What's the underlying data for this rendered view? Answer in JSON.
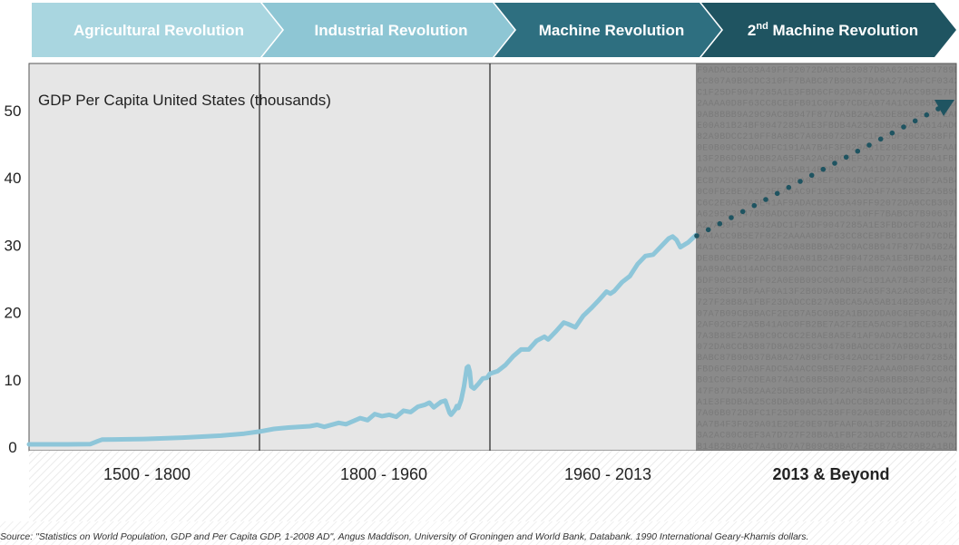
{
  "revolutions": [
    {
      "label": "Agricultural Revolution",
      "color": "#a9d6e0",
      "text_color": "#ffffff"
    },
    {
      "label": "Industrial Revolution",
      "color": "#8ec6d4",
      "text_color": "#ffffff"
    },
    {
      "label": "Machine Revolution",
      "color": "#2e6f80",
      "text_color": "#ffffff"
    },
    {
      "label": "2nd Machine Revolution",
      "label_sup": "nd",
      "label_prefix": "2",
      "label_suffix": " Machine Revolution",
      "color": "#1f5461",
      "text_color": "#ffffff"
    }
  ],
  "periods": [
    {
      "label": "1500 - 1800",
      "bold": false
    },
    {
      "label": "1800 - 1960",
      "bold": false
    },
    {
      "label": "1960 - 2013",
      "bold": false
    },
    {
      "label": "2013 & Beyond",
      "bold": true
    }
  ],
  "source": {
    "prefix": "Source:",
    "text": "\"Statistics on World Population, GDP and Per Capita GDP, 1-2008 AD\", Angus Maddison, University of Groningen and World Bank, Databank. 1990 International Geary-Khamis dollars."
  },
  "chart_data": {
    "type": "line",
    "title": "GDP Per Capita United States (thousands)",
    "xlabel": "",
    "ylabel": "",
    "ylim": [
      0,
      55
    ],
    "yticks": [
      0,
      10,
      20,
      30,
      40,
      50
    ],
    "grid": false,
    "line_color": "#8ec6d9",
    "forecast_color": "#1f5461",
    "panel_color": "#e6e6e6",
    "future_panel_color": "#8a8a8a",
    "hex_text": "F9ADACB2C03A49FF92072DA8CCB3087D8A6295 C304789BADCC807A9B9CDC310FF7BABC87B9063 7BA8A27A89FCF0342ADC1F25DF9047285A1E3FBD 6CF02DA8FADC5A4ACC9B5E7F02F2AAAA0D8F63CC 8CE8FB01C06F97CDEA874A1C68B5B002A8C9AB 8BBB9A29C9AC8B947F877DA5B2AA25DE8B0CED 9F2AF84E00A81B24BF9047285A1E3FBDB4A25C 8DBA89ABA614ADCCB82A9BDCC210FF8A8BC7A06 B072D8FC1F25DF90C5288FF02A0E0B09C0C0AD0F C191AA7B4F3F029A01E20E20E97BFAAF0A13F2B6D 9A9DBB2A65F3A2AC80C8EF3A7D727F28B8A1FBF2 3DADC CB27A9BCA5AA5AB14B2B9A0C7A41D07A7B09C B9BACF2ECB7A5C09B2A1BD2DDA0C8EF9C04DACF2 2AF02C6F2A5B41A0C0FB2BE7A2F2EEA5AC9F19B CE33A2D4F7A3B88E2A5B9C9CC6C2E8AE8A5E41A"
  }
}
